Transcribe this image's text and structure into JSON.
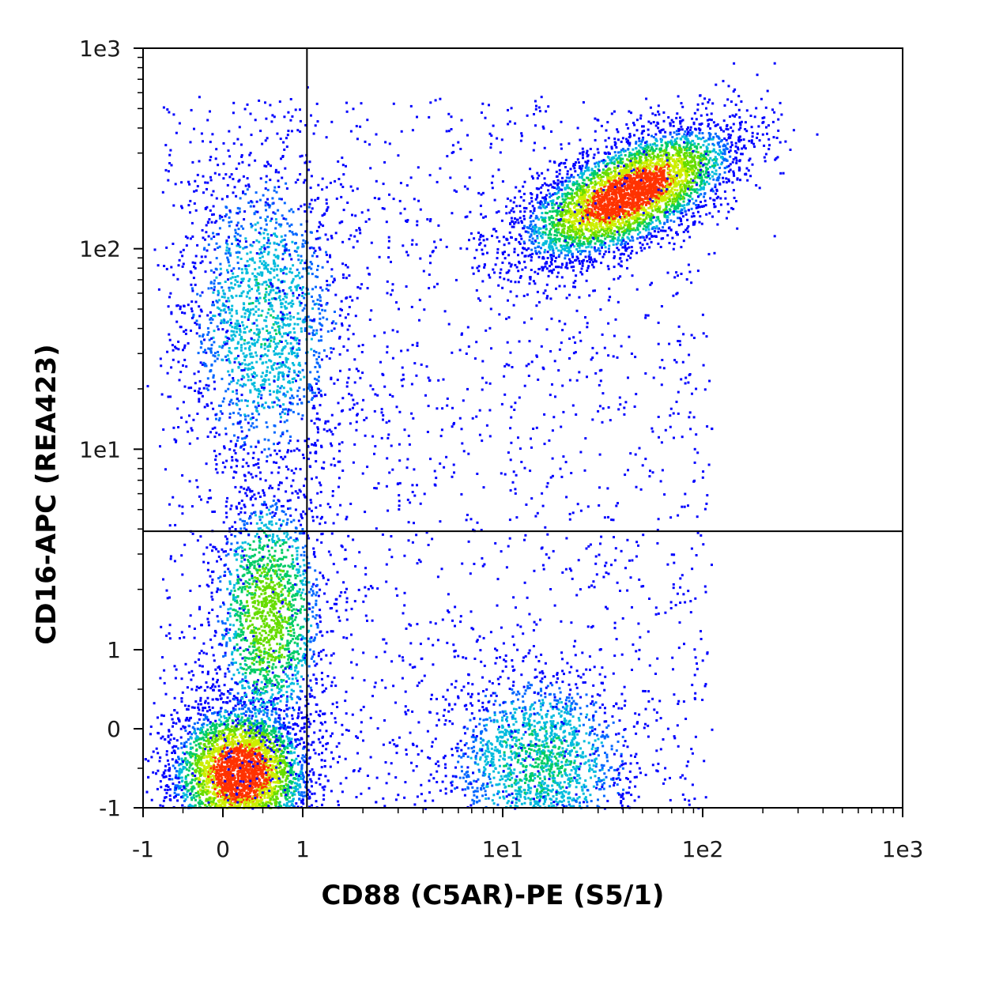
{
  "chart_data": {
    "type": "scatter",
    "subtype": "flow-cytometry density plot (biexponential axes)",
    "title": "",
    "xlabel": "CD88 (C5AR)-PE (S5/1)",
    "ylabel": "CD16-APC (REA423)",
    "x_scale": "biexponential",
    "y_scale": "biexponential",
    "xlim": [
      -1,
      1000
    ],
    "ylim": [
      -1,
      1000
    ],
    "x_ticks": [
      {
        "value": -1,
        "label": "-1"
      },
      {
        "value": 0,
        "label": "0"
      },
      {
        "value": 1,
        "label": "1"
      },
      {
        "value": 10,
        "label": "1e1"
      },
      {
        "value": 100,
        "label": "1e2"
      },
      {
        "value": 1000,
        "label": "1e3"
      }
    ],
    "y_ticks": [
      {
        "value": -1,
        "label": "-1"
      },
      {
        "value": 0,
        "label": "0"
      },
      {
        "value": 1,
        "label": "1"
      },
      {
        "value": 10,
        "label": "1e1"
      },
      {
        "value": 100,
        "label": "1e2"
      },
      {
        "value": 1000,
        "label": "1e3"
      }
    ],
    "quadrant_gate": {
      "x": 1.05,
      "y": 3.9
    },
    "density_colormap": [
      "#0000ff",
      "#0066ff",
      "#00bbdd",
      "#00cc66",
      "#66dd00",
      "#ccee00",
      "#ff3300"
    ],
    "populations": [
      {
        "cx": 0.2,
        "cy": -0.55,
        "density": "very high"
      },
      {
        "cx": 0.5,
        "cy": 45,
        "density": "medium"
      },
      {
        "cx": 15,
        "cy": -0.4,
        "density": "medium"
      },
      {
        "cx": 42,
        "cy": 190,
        "density": "very high"
      },
      {
        "cx": 0.55,
        "cy": 1.5,
        "density": "high"
      }
    ],
    "grid": false,
    "legend": "none"
  }
}
